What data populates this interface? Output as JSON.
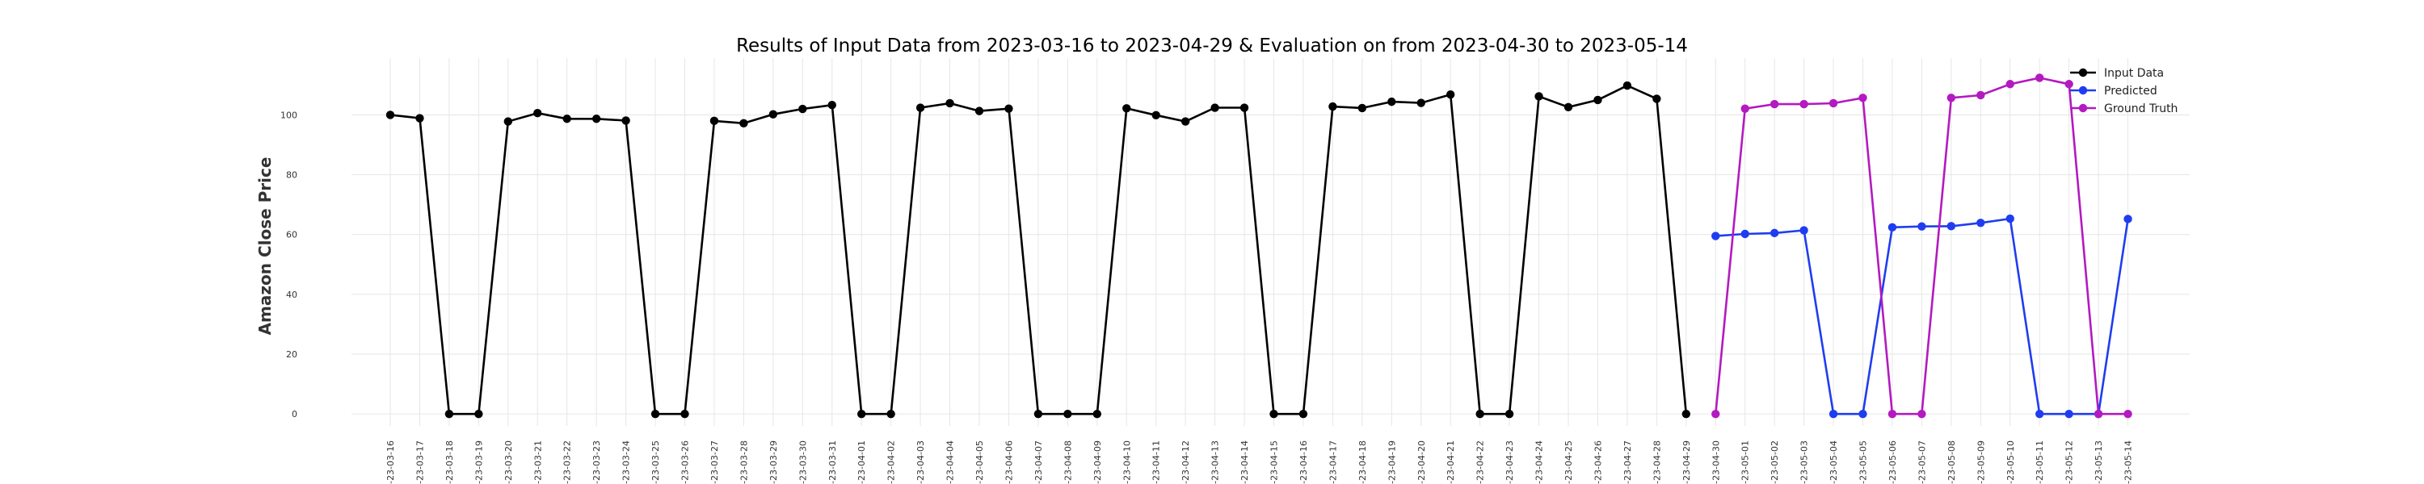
{
  "chart_data": {
    "type": "line",
    "title": "Results of Input Data from 2023-03-16 to 2023-04-29 & Evaluation on from 2023-04-30 to 2023-05-14",
    "xlabel": "",
    "ylabel": "Amazon Close Price",
    "ylim": [
      -4,
      119
    ],
    "yticks": [
      0,
      20,
      40,
      60,
      80,
      100
    ],
    "grid": true,
    "legend_position": "top-right",
    "x": [
      "2023-03-16",
      "2023-03-17",
      "2023-03-18",
      "2023-03-19",
      "2023-03-20",
      "2023-03-21",
      "2023-03-22",
      "2023-03-23",
      "2023-03-24",
      "2023-03-25",
      "2023-03-26",
      "2023-03-27",
      "2023-03-28",
      "2023-03-29",
      "2023-03-30",
      "2023-03-31",
      "2023-04-01",
      "2023-04-02",
      "2023-04-03",
      "2023-04-04",
      "2023-04-05",
      "2023-04-06",
      "2023-04-07",
      "2023-04-08",
      "2023-04-09",
      "2023-04-10",
      "2023-04-11",
      "2023-04-12",
      "2023-04-13",
      "2023-04-14",
      "2023-04-15",
      "2023-04-16",
      "2023-04-17",
      "2023-04-18",
      "2023-04-19",
      "2023-04-20",
      "2023-04-21",
      "2023-04-22",
      "2023-04-23",
      "2023-04-24",
      "2023-04-25",
      "2023-04-26",
      "2023-04-27",
      "2023-04-28",
      "2023-04-29",
      "2023-04-30",
      "2023-05-01",
      "2023-05-02",
      "2023-05-03",
      "2023-05-04",
      "2023-05-05",
      "2023-05-06",
      "2023-05-07",
      "2023-05-08",
      "2023-05-09",
      "2023-05-10",
      "2023-05-11",
      "2023-05-12",
      "2023-05-13",
      "2023-05-14"
    ],
    "tick_labels": [
      "-23-03-16",
      "-23-03-17",
      "-23-03-18",
      "-23-03-19",
      "-23-03-20",
      "-23-03-21",
      "-23-03-22",
      "-23-03-23",
      "-23-03-24",
      "-23-03-25",
      "-23-03-26",
      "-23-03-27",
      "-23-03-28",
      "-23-03-29",
      "-23-03-30",
      "-23-03-31",
      "-23-04-01",
      "-23-04-02",
      "-23-04-03",
      "-23-04-04",
      "-23-04-05",
      "-23-04-06",
      "-23-04-07",
      "-23-04-08",
      "-23-04-09",
      "-23-04-10",
      "-23-04-11",
      "-23-04-12",
      "-23-04-13",
      "-23-04-14",
      "-23-04-15",
      "-23-04-16",
      "-23-04-17",
      "-23-04-18",
      "-23-04-19",
      "-23-04-20",
      "-23-04-21",
      "-23-04-22",
      "-23-04-23",
      "-23-04-24",
      "-23-04-25",
      "-23-04-26",
      "-23-04-27",
      "-23-04-28",
      "-23-04-29",
      "-23-04-30",
      "-23-05-01",
      "-23-05-02",
      "-23-05-03",
      "-23-05-04",
      "-23-05-05",
      "-23-05-06",
      "-23-05-07",
      "-23-05-08",
      "-23-05-09",
      "-23-05-10",
      "-23-05-11",
      "-23-05-12",
      "-23-05-13",
      "-23-05-14"
    ],
    "series": [
      {
        "name": "Input Data",
        "color": "#000000",
        "x": [
          "2023-03-16",
          "2023-03-17",
          "2023-03-18",
          "2023-03-19",
          "2023-03-20",
          "2023-03-21",
          "2023-03-22",
          "2023-03-23",
          "2023-03-24",
          "2023-03-25",
          "2023-03-26",
          "2023-03-27",
          "2023-03-28",
          "2023-03-29",
          "2023-03-30",
          "2023-03-31",
          "2023-04-01",
          "2023-04-02",
          "2023-04-03",
          "2023-04-04",
          "2023-04-05",
          "2023-04-06",
          "2023-04-07",
          "2023-04-08",
          "2023-04-09",
          "2023-04-10",
          "2023-04-11",
          "2023-04-12",
          "2023-04-13",
          "2023-04-14",
          "2023-04-15",
          "2023-04-16",
          "2023-04-17",
          "2023-04-18",
          "2023-04-19",
          "2023-04-20",
          "2023-04-21",
          "2023-04-22",
          "2023-04-23",
          "2023-04-24",
          "2023-04-25",
          "2023-04-26",
          "2023-04-27",
          "2023-04-28",
          "2023-04-29"
        ],
        "values": [
          100.0,
          98.9,
          0,
          0,
          97.8,
          100.6,
          98.7,
          98.7,
          98.1,
          0,
          0,
          98.0,
          97.2,
          100.2,
          102.0,
          103.3,
          0,
          0,
          102.4,
          103.9,
          101.3,
          102.1,
          0,
          0,
          0,
          102.2,
          99.9,
          97.8,
          102.4,
          102.4,
          0,
          0,
          102.8,
          102.3,
          104.4,
          104.0,
          106.8,
          0,
          0,
          106.2,
          102.6,
          105.0,
          109.8,
          105.4,
          0
        ]
      },
      {
        "name": "Predicted",
        "color": "#1f3df0",
        "x": [
          "2023-04-30",
          "2023-05-01",
          "2023-05-02",
          "2023-05-03",
          "2023-05-04",
          "2023-05-05",
          "2023-05-06",
          "2023-05-07",
          "2023-05-08",
          "2023-05-09",
          "2023-05-10",
          "2023-05-11",
          "2023-05-12",
          "2023-05-13",
          "2023-05-14"
        ],
        "values": [
          59.5,
          60.2,
          60.5,
          61.4,
          0,
          0,
          62.4,
          62.7,
          62.8,
          63.9,
          65.3,
          0,
          0,
          0,
          65.2
        ]
      },
      {
        "name": "Ground Truth",
        "color": "#b31ac0",
        "x": [
          "2023-04-30",
          "2023-05-01",
          "2023-05-02",
          "2023-05-03",
          "2023-05-04",
          "2023-05-05",
          "2023-05-06",
          "2023-05-07",
          "2023-05-08",
          "2023-05-09",
          "2023-05-10",
          "2023-05-11",
          "2023-05-12",
          "2023-05-13",
          "2023-05-14"
        ],
        "values": [
          0,
          102.1,
          103.6,
          103.6,
          103.9,
          105.7,
          0,
          0,
          105.7,
          106.6,
          110.3,
          112.4,
          110.3,
          0,
          0
        ]
      }
    ]
  }
}
